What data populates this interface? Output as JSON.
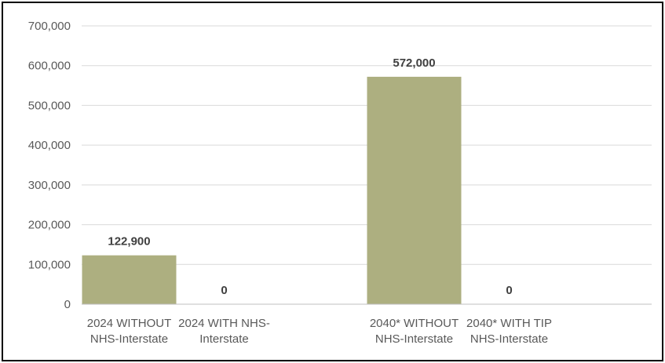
{
  "chart_data": {
    "type": "bar",
    "title": "",
    "xlabel": "",
    "ylabel": "",
    "ylim": [
      0,
      700000
    ],
    "yticks": [
      0,
      100000,
      200000,
      300000,
      400000,
      500000,
      600000,
      700000
    ],
    "ytick_labels": [
      "0",
      "100,000",
      "200,000",
      "300,000",
      "400,000",
      "500,000",
      "600,000",
      "700,000"
    ],
    "grid": true,
    "legend": "none",
    "categories": [
      [
        "2024 WITHOUT",
        "NHS-Interstate"
      ],
      [
        "2024 WITH NHS-",
        "Interstate"
      ],
      [
        "2040* WITHOUT",
        "NHS-Interstate"
      ],
      [
        "2040* WITH TIP",
        "NHS-Interstate"
      ]
    ],
    "values": [
      122900,
      0,
      572000,
      0
    ],
    "data_labels": [
      "122,900",
      "0",
      "572,000",
      "0"
    ],
    "category_slots": [
      0,
      1,
      3,
      4
    ],
    "bar_color": "#adaf80",
    "grid_color": "#d9d9d9",
    "axis_color": "#bfbfbf"
  }
}
